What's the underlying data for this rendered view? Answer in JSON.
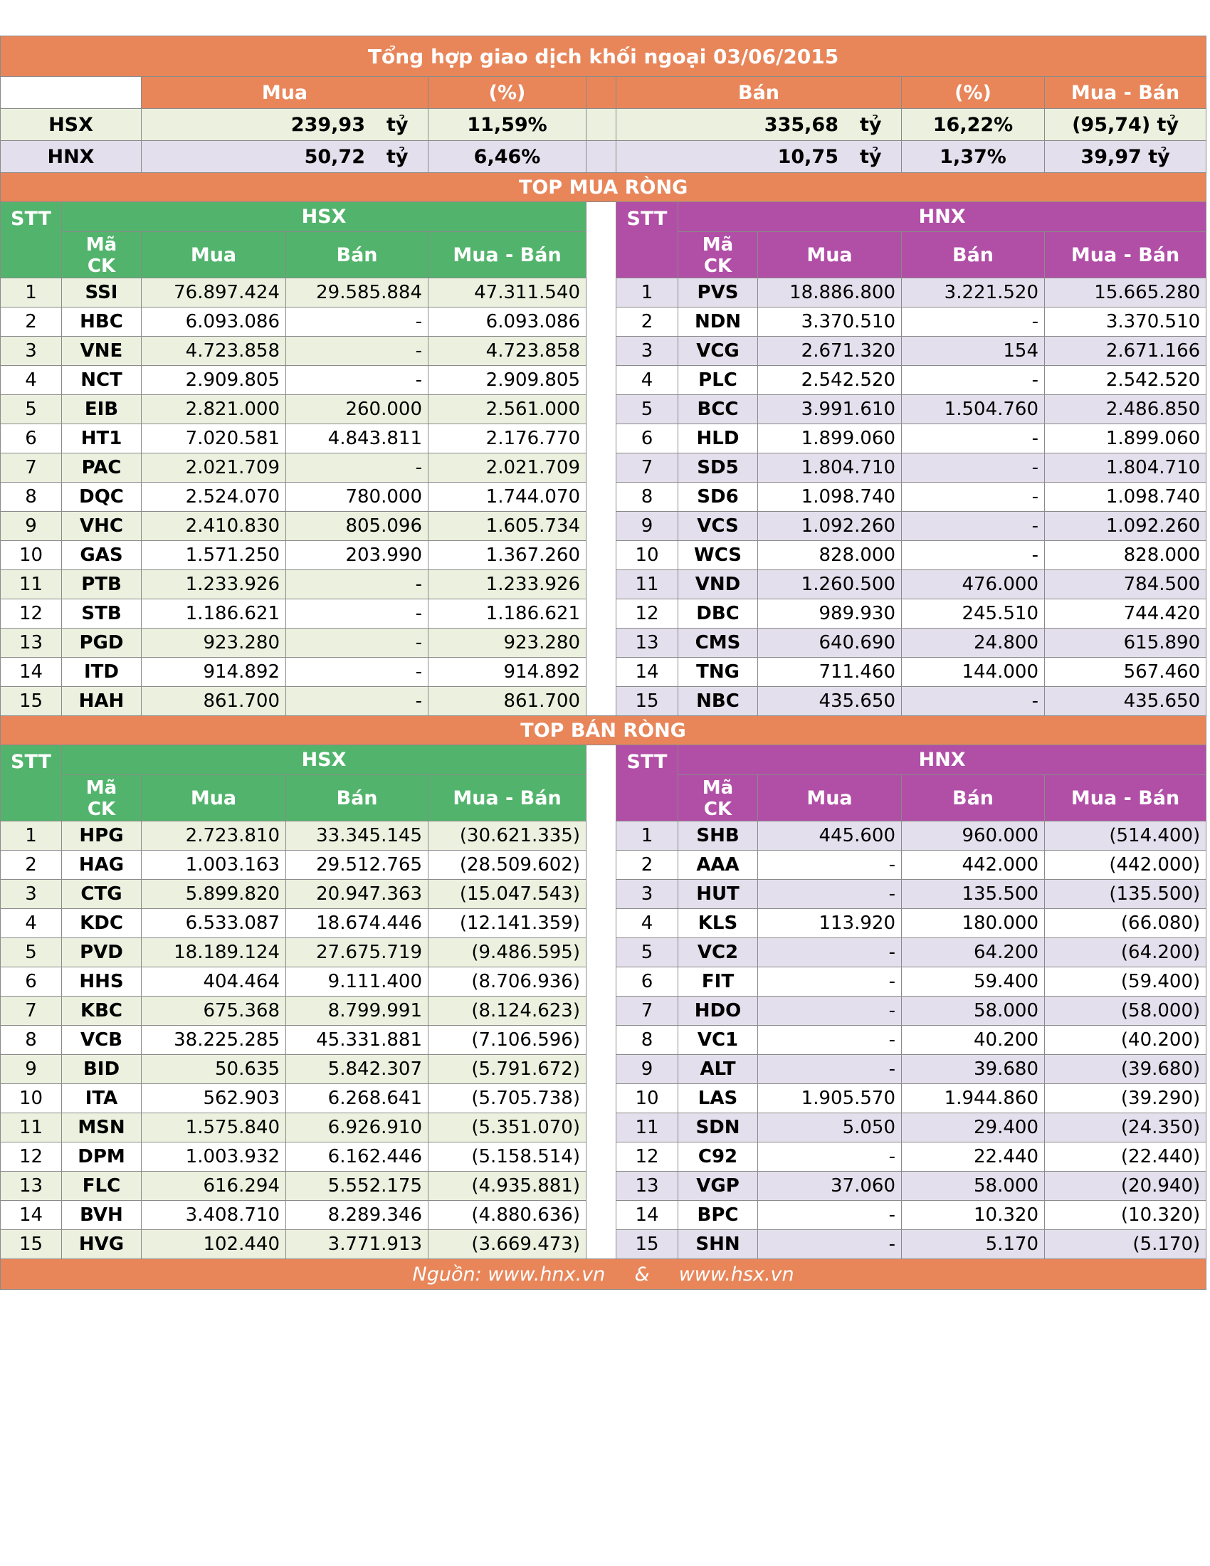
{
  "title": "Tổng hợp giao dịch khối ngoại 03/06/2015",
  "summary": {
    "headers": {
      "buy": "Mua",
      "buy_pct": "(%)",
      "sell": "Bán",
      "sell_pct": "(%)",
      "net": "Mua - Bán"
    },
    "unit": "tỷ",
    "rows": [
      {
        "exchange": "HSX",
        "buy": "239,93",
        "buy_pct": "11,59%",
        "sell": "335,68",
        "sell_pct": "16,22%",
        "net": "(95,74) tỷ"
      },
      {
        "exchange": "HNX",
        "buy": "50,72",
        "buy_pct": "6,46%",
        "sell": "10,75",
        "sell_pct": "1,37%",
        "net": "39,97 tỷ"
      }
    ]
  },
  "col_headers": {
    "stt": "STT",
    "ma": "Mã",
    "ck": "CK",
    "buy": "Mua",
    "sell": "Bán",
    "net": "Mua - Bán",
    "hsx": "HSX",
    "hnx": "HNX"
  },
  "top_buy": {
    "title": "TOP MUA RÒNG",
    "hsx": [
      {
        "stt": "1",
        "code": "SSI",
        "buy": "76.897.424",
        "sell": "29.585.884",
        "net": "47.311.540"
      },
      {
        "stt": "2",
        "code": "HBC",
        "buy": "6.093.086",
        "sell": "-",
        "net": "6.093.086"
      },
      {
        "stt": "3",
        "code": "VNE",
        "buy": "4.723.858",
        "sell": "-",
        "net": "4.723.858"
      },
      {
        "stt": "4",
        "code": "NCT",
        "buy": "2.909.805",
        "sell": "-",
        "net": "2.909.805"
      },
      {
        "stt": "5",
        "code": "EIB",
        "buy": "2.821.000",
        "sell": "260.000",
        "net": "2.561.000"
      },
      {
        "stt": "6",
        "code": "HT1",
        "buy": "7.020.581",
        "sell": "4.843.811",
        "net": "2.176.770"
      },
      {
        "stt": "7",
        "code": "PAC",
        "buy": "2.021.709",
        "sell": "-",
        "net": "2.021.709"
      },
      {
        "stt": "8",
        "code": "DQC",
        "buy": "2.524.070",
        "sell": "780.000",
        "net": "1.744.070"
      },
      {
        "stt": "9",
        "code": "VHC",
        "buy": "2.410.830",
        "sell": "805.096",
        "net": "1.605.734"
      },
      {
        "stt": "10",
        "code": "GAS",
        "buy": "1.571.250",
        "sell": "203.990",
        "net": "1.367.260"
      },
      {
        "stt": "11",
        "code": "PTB",
        "buy": "1.233.926",
        "sell": "-",
        "net": "1.233.926"
      },
      {
        "stt": "12",
        "code": "STB",
        "buy": "1.186.621",
        "sell": "-",
        "net": "1.186.621"
      },
      {
        "stt": "13",
        "code": "PGD",
        "buy": "923.280",
        "sell": "-",
        "net": "923.280"
      },
      {
        "stt": "14",
        "code": "ITD",
        "buy": "914.892",
        "sell": "-",
        "net": "914.892"
      },
      {
        "stt": "15",
        "code": "HAH",
        "buy": "861.700",
        "sell": "-",
        "net": "861.700"
      }
    ],
    "hnx": [
      {
        "stt": "1",
        "code": "PVS",
        "buy": "18.886.800",
        "sell": "3.221.520",
        "net": "15.665.280"
      },
      {
        "stt": "2",
        "code": "NDN",
        "buy": "3.370.510",
        "sell": "-",
        "net": "3.370.510"
      },
      {
        "stt": "3",
        "code": "VCG",
        "buy": "2.671.320",
        "sell": "154",
        "net": "2.671.166"
      },
      {
        "stt": "4",
        "code": "PLC",
        "buy": "2.542.520",
        "sell": "-",
        "net": "2.542.520"
      },
      {
        "stt": "5",
        "code": "BCC",
        "buy": "3.991.610",
        "sell": "1.504.760",
        "net": "2.486.850"
      },
      {
        "stt": "6",
        "code": "HLD",
        "buy": "1.899.060",
        "sell": "-",
        "net": "1.899.060"
      },
      {
        "stt": "7",
        "code": "SD5",
        "buy": "1.804.710",
        "sell": "-",
        "net": "1.804.710"
      },
      {
        "stt": "8",
        "code": "SD6",
        "buy": "1.098.740",
        "sell": "-",
        "net": "1.098.740"
      },
      {
        "stt": "9",
        "code": "VCS",
        "buy": "1.092.260",
        "sell": "-",
        "net": "1.092.260"
      },
      {
        "stt": "10",
        "code": "WCS",
        "buy": "828.000",
        "sell": "-",
        "net": "828.000"
      },
      {
        "stt": "11",
        "code": "VND",
        "buy": "1.260.500",
        "sell": "476.000",
        "net": "784.500"
      },
      {
        "stt": "12",
        "code": "DBC",
        "buy": "989.930",
        "sell": "245.510",
        "net": "744.420"
      },
      {
        "stt": "13",
        "code": "CMS",
        "buy": "640.690",
        "sell": "24.800",
        "net": "615.890"
      },
      {
        "stt": "14",
        "code": "TNG",
        "buy": "711.460",
        "sell": "144.000",
        "net": "567.460"
      },
      {
        "stt": "15",
        "code": "NBC",
        "buy": "435.650",
        "sell": "-",
        "net": "435.650"
      }
    ]
  },
  "top_sell": {
    "title": "TOP BÁN RÒNG",
    "hsx": [
      {
        "stt": "1",
        "code": "HPG",
        "buy": "2.723.810",
        "sell": "33.345.145",
        "net": "(30.621.335)"
      },
      {
        "stt": "2",
        "code": "HAG",
        "buy": "1.003.163",
        "sell": "29.512.765",
        "net": "(28.509.602)"
      },
      {
        "stt": "3",
        "code": "CTG",
        "buy": "5.899.820",
        "sell": "20.947.363",
        "net": "(15.047.543)"
      },
      {
        "stt": "4",
        "code": "KDC",
        "buy": "6.533.087",
        "sell": "18.674.446",
        "net": "(12.141.359)"
      },
      {
        "stt": "5",
        "code": "PVD",
        "buy": "18.189.124",
        "sell": "27.675.719",
        "net": "(9.486.595)"
      },
      {
        "stt": "6",
        "code": "HHS",
        "buy": "404.464",
        "sell": "9.111.400",
        "net": "(8.706.936)"
      },
      {
        "stt": "7",
        "code": "KBC",
        "buy": "675.368",
        "sell": "8.799.991",
        "net": "(8.124.623)"
      },
      {
        "stt": "8",
        "code": "VCB",
        "buy": "38.225.285",
        "sell": "45.331.881",
        "net": "(7.106.596)"
      },
      {
        "stt": "9",
        "code": "BID",
        "buy": "50.635",
        "sell": "5.842.307",
        "net": "(5.791.672)"
      },
      {
        "stt": "10",
        "code": "ITA",
        "buy": "562.903",
        "sell": "6.268.641",
        "net": "(5.705.738)"
      },
      {
        "stt": "11",
        "code": "MSN",
        "buy": "1.575.840",
        "sell": "6.926.910",
        "net": "(5.351.070)"
      },
      {
        "stt": "12",
        "code": "DPM",
        "buy": "1.003.932",
        "sell": "6.162.446",
        "net": "(5.158.514)"
      },
      {
        "stt": "13",
        "code": "FLC",
        "buy": "616.294",
        "sell": "5.552.175",
        "net": "(4.935.881)"
      },
      {
        "stt": "14",
        "code": "BVH",
        "buy": "3.408.710",
        "sell": "8.289.346",
        "net": "(4.880.636)"
      },
      {
        "stt": "15",
        "code": "HVG",
        "buy": "102.440",
        "sell": "3.771.913",
        "net": "(3.669.473)"
      }
    ],
    "hnx": [
      {
        "stt": "1",
        "code": "SHB",
        "buy": "445.600",
        "sell": "960.000",
        "net": "(514.400)"
      },
      {
        "stt": "2",
        "code": "AAA",
        "buy": "-",
        "sell": "442.000",
        "net": "(442.000)"
      },
      {
        "stt": "3",
        "code": "HUT",
        "buy": "-",
        "sell": "135.500",
        "net": "(135.500)"
      },
      {
        "stt": "4",
        "code": "KLS",
        "buy": "113.920",
        "sell": "180.000",
        "net": "(66.080)"
      },
      {
        "stt": "5",
        "code": "VC2",
        "buy": "-",
        "sell": "64.200",
        "net": "(64.200)"
      },
      {
        "stt": "6",
        "code": "FIT",
        "buy": "-",
        "sell": "59.400",
        "net": "(59.400)"
      },
      {
        "stt": "7",
        "code": "HDO",
        "buy": "-",
        "sell": "58.000",
        "net": "(58.000)"
      },
      {
        "stt": "8",
        "code": "VC1",
        "buy": "-",
        "sell": "40.200",
        "net": "(40.200)"
      },
      {
        "stt": "9",
        "code": "ALT",
        "buy": "-",
        "sell": "39.680",
        "net": "(39.680)"
      },
      {
        "stt": "10",
        "code": "LAS",
        "buy": "1.905.570",
        "sell": "1.944.860",
        "net": "(39.290)"
      },
      {
        "stt": "11",
        "code": "SDN",
        "buy": "5.050",
        "sell": "29.400",
        "net": "(24.350)"
      },
      {
        "stt": "12",
        "code": "C92",
        "buy": "-",
        "sell": "22.440",
        "net": "(22.440)"
      },
      {
        "stt": "13",
        "code": "VGP",
        "buy": "37.060",
        "sell": "58.000",
        "net": "(20.940)"
      },
      {
        "stt": "14",
        "code": "BPC",
        "buy": "-",
        "sell": "10.320",
        "net": "(10.320)"
      },
      {
        "stt": "15",
        "code": "SHN",
        "buy": "-",
        "sell": "5.170",
        "net": "(5.170)"
      }
    ]
  },
  "source": {
    "label": "Nguồn: www.hnx.vn",
    "amp": "&",
    "site2": "www.hsx.vn"
  },
  "colors": {
    "orange": "#e8865a",
    "green_header": "#52b46c",
    "purple_header": "#b14ea6",
    "green_row": "#ebf1de",
    "purple_row": "#e4dfec"
  }
}
